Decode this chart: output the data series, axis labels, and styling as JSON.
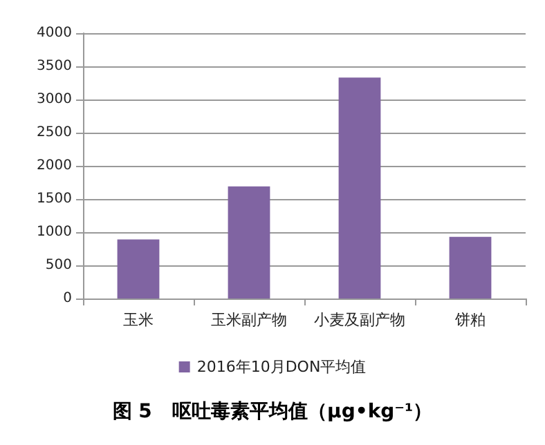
{
  "chart_data": {
    "type": "bar",
    "title": "图 5   呕吐毒素平均值（μg•kg⁻¹）",
    "categories": [
      "玉米",
      "玉米副产物",
      "小麦及副产物",
      "饼粕"
    ],
    "series": [
      {
        "name": "2016年10月DON平均值",
        "color": "#8064a2",
        "values": [
          890,
          1690,
          3330,
          930
        ]
      }
    ],
    "ylim": [
      0,
      4000
    ],
    "yticks": [
      0,
      500,
      1000,
      1500,
      2000,
      2500,
      3000,
      3500,
      4000
    ],
    "grid": "y",
    "legend": "bottom"
  }
}
